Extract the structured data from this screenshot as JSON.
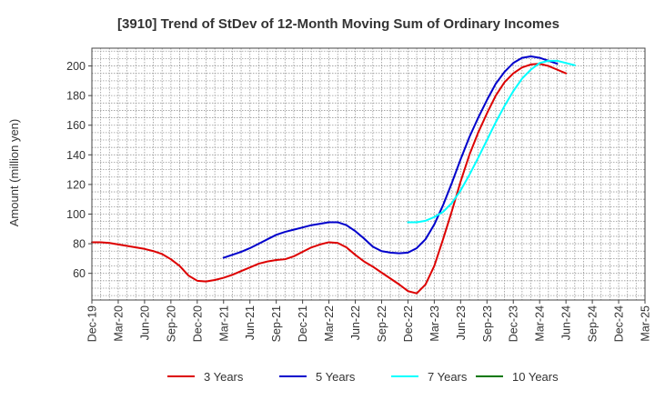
{
  "chart_data": {
    "type": "line",
    "title": "[3910]  Trend of StDev of 12-Month Moving Sum of Ordinary Incomes",
    "xlabel": "",
    "ylabel": "Amount (million yen)",
    "ylim": [
      42,
      212
    ],
    "yticks": [
      60,
      80,
      100,
      120,
      140,
      160,
      180,
      200
    ],
    "x_tick_labels": [
      "Dec-19",
      "Mar-20",
      "Jun-20",
      "Sep-20",
      "Dec-20",
      "Mar-21",
      "Jun-21",
      "Sep-21",
      "Dec-21",
      "Mar-22",
      "Jun-22",
      "Sep-22",
      "Dec-22",
      "Mar-23",
      "Jun-23",
      "Sep-23",
      "Dec-23",
      "Mar-24",
      "Jun-24",
      "Sep-24",
      "Dec-24",
      "Mar-25"
    ],
    "x_index_range": [
      0,
      63
    ],
    "grid": true,
    "legend_position": "bottom",
    "series": [
      {
        "name": "3 Years",
        "color": "#dd0000",
        "start_index": 0,
        "values": [
          81,
          81,
          80.5,
          79.5,
          78.5,
          77.5,
          76.5,
          75,
          73,
          69.5,
          65,
          58.5,
          55,
          54.5,
          55.5,
          57,
          59,
          61.5,
          64,
          66.5,
          68,
          69,
          69.5,
          71.5,
          74.5,
          77.5,
          79.5,
          81,
          80.5,
          77.5,
          72.5,
          68,
          64.5,
          60.5,
          56.5,
          52.5,
          48,
          46.5,
          52.5,
          65,
          83,
          102,
          122,
          140,
          155,
          168,
          180,
          189,
          195,
          199,
          201,
          201.5,
          200,
          197.5,
          195
        ]
      },
      {
        "name": "5 Years",
        "color": "#0000cc",
        "start_index": 15,
        "values": [
          70.5,
          72.5,
          74.5,
          77,
          80,
          83,
          86,
          88,
          89.5,
          91,
          92.5,
          93.5,
          94.5,
          94.5,
          92.5,
          88.5,
          83.5,
          78,
          75,
          74,
          73.5,
          74,
          77,
          83,
          93,
          106,
          121,
          137,
          152,
          165,
          177,
          188,
          196,
          202,
          205.5,
          206.5,
          205.5,
          203.5,
          201.5
        ]
      },
      {
        "name": "7 Years",
        "color": "#00ffff",
        "start_index": 36,
        "values": [
          94.5,
          94.5,
          95.5,
          98,
          101.5,
          107.5,
          116,
          126.5,
          138,
          150,
          162,
          173,
          183,
          191.5,
          197.5,
          202,
          203.5,
          203.5,
          202,
          200.5
        ]
      },
      {
        "name": "10 Years",
        "color": "#007700",
        "start_index": 0,
        "values": []
      }
    ]
  }
}
